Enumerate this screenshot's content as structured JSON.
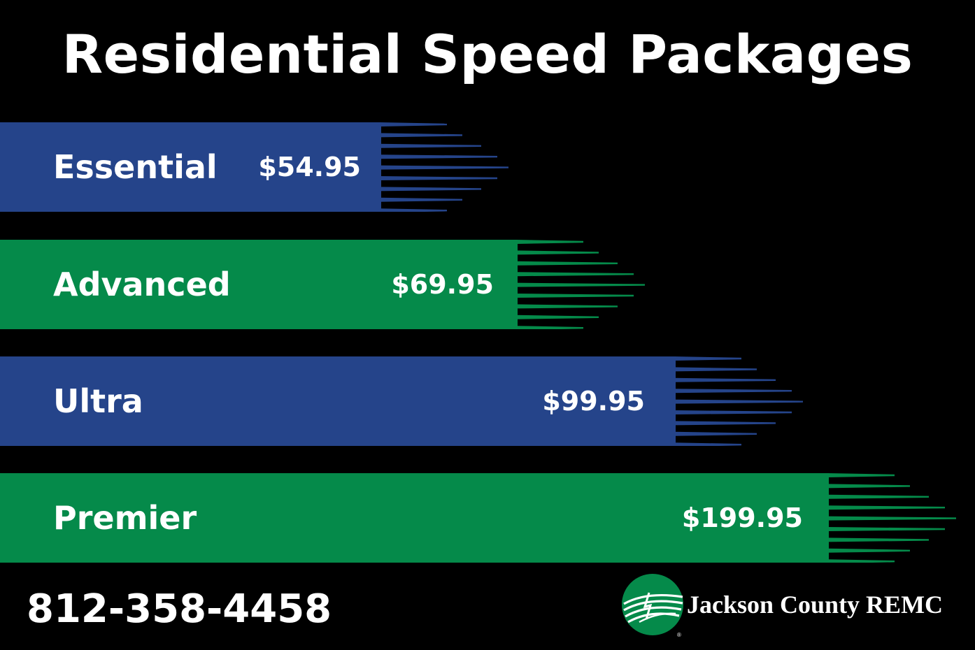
{
  "title": "Residential Speed Packages",
  "colors": {
    "blue": "#25448A",
    "green": "#058A4A",
    "background": "#000000"
  },
  "packages": [
    {
      "name": "Essential",
      "price": "$54.95",
      "color": "blue"
    },
    {
      "name": "Advanced",
      "price": "$69.95",
      "color": "green"
    },
    {
      "name": "Ultra",
      "price": "$99.95",
      "color": "blue"
    },
    {
      "name": "Premier",
      "price": "$199.95",
      "color": "green"
    }
  ],
  "phone": "812-358-4458",
  "brand": {
    "name": "Jackson County REMC",
    "registered_mark": "®"
  }
}
